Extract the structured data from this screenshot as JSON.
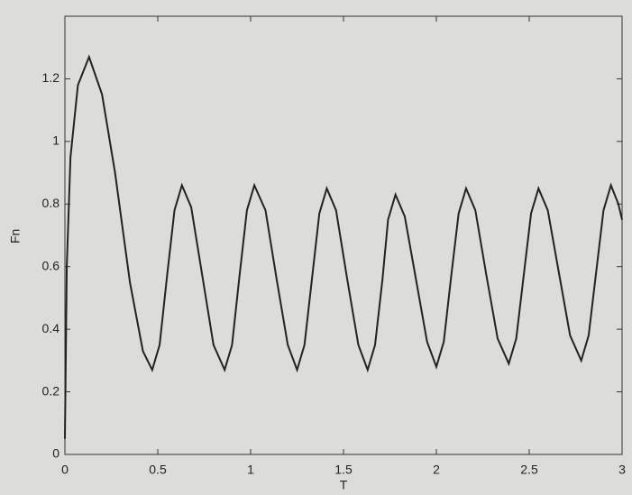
{
  "chart_data": {
    "type": "line",
    "xlabel": "T",
    "ylabel": "Fn",
    "x": [
      0,
      0.01,
      0.03,
      0.07,
      0.13,
      0.2,
      0.27,
      0.35,
      0.42,
      0.47,
      0.51,
      0.55,
      0.59,
      0.63,
      0.68,
      0.74,
      0.8,
      0.86,
      0.9,
      0.94,
      0.98,
      1.02,
      1.08,
      1.14,
      1.2,
      1.25,
      1.29,
      1.33,
      1.37,
      1.41,
      1.46,
      1.52,
      1.58,
      1.63,
      1.67,
      1.71,
      1.74,
      1.78,
      1.83,
      1.89,
      1.95,
      2.0,
      2.04,
      2.08,
      2.12,
      2.16,
      2.21,
      2.27,
      2.33,
      2.39,
      2.43,
      2.47,
      2.51,
      2.55,
      2.6,
      2.66,
      2.72,
      2.78,
      2.82,
      2.86,
      2.9,
      2.94,
      2.98,
      3.0
    ],
    "series": [
      {
        "color": "#222222",
        "values": [
          0.05,
          0.6,
          0.95,
          1.18,
          1.27,
          1.15,
          0.9,
          0.55,
          0.33,
          0.27,
          0.35,
          0.57,
          0.78,
          0.86,
          0.79,
          0.57,
          0.35,
          0.27,
          0.35,
          0.57,
          0.78,
          0.86,
          0.78,
          0.56,
          0.35,
          0.27,
          0.35,
          0.56,
          0.77,
          0.85,
          0.78,
          0.56,
          0.35,
          0.27,
          0.35,
          0.56,
          0.75,
          0.83,
          0.76,
          0.56,
          0.36,
          0.28,
          0.36,
          0.57,
          0.77,
          0.85,
          0.78,
          0.57,
          0.37,
          0.29,
          0.37,
          0.57,
          0.77,
          0.85,
          0.78,
          0.58,
          0.38,
          0.3,
          0.38,
          0.58,
          0.78,
          0.86,
          0.8,
          0.75
        ]
      }
    ],
    "xlim": [
      0,
      3
    ],
    "xticks": [
      0,
      0.5,
      1,
      1.5,
      2,
      2.5,
      3
    ],
    "ylim": [
      0,
      1.4
    ],
    "yticks": [
      0,
      0.2,
      0.4,
      0.6,
      0.8,
      1,
      1.2
    ]
  }
}
